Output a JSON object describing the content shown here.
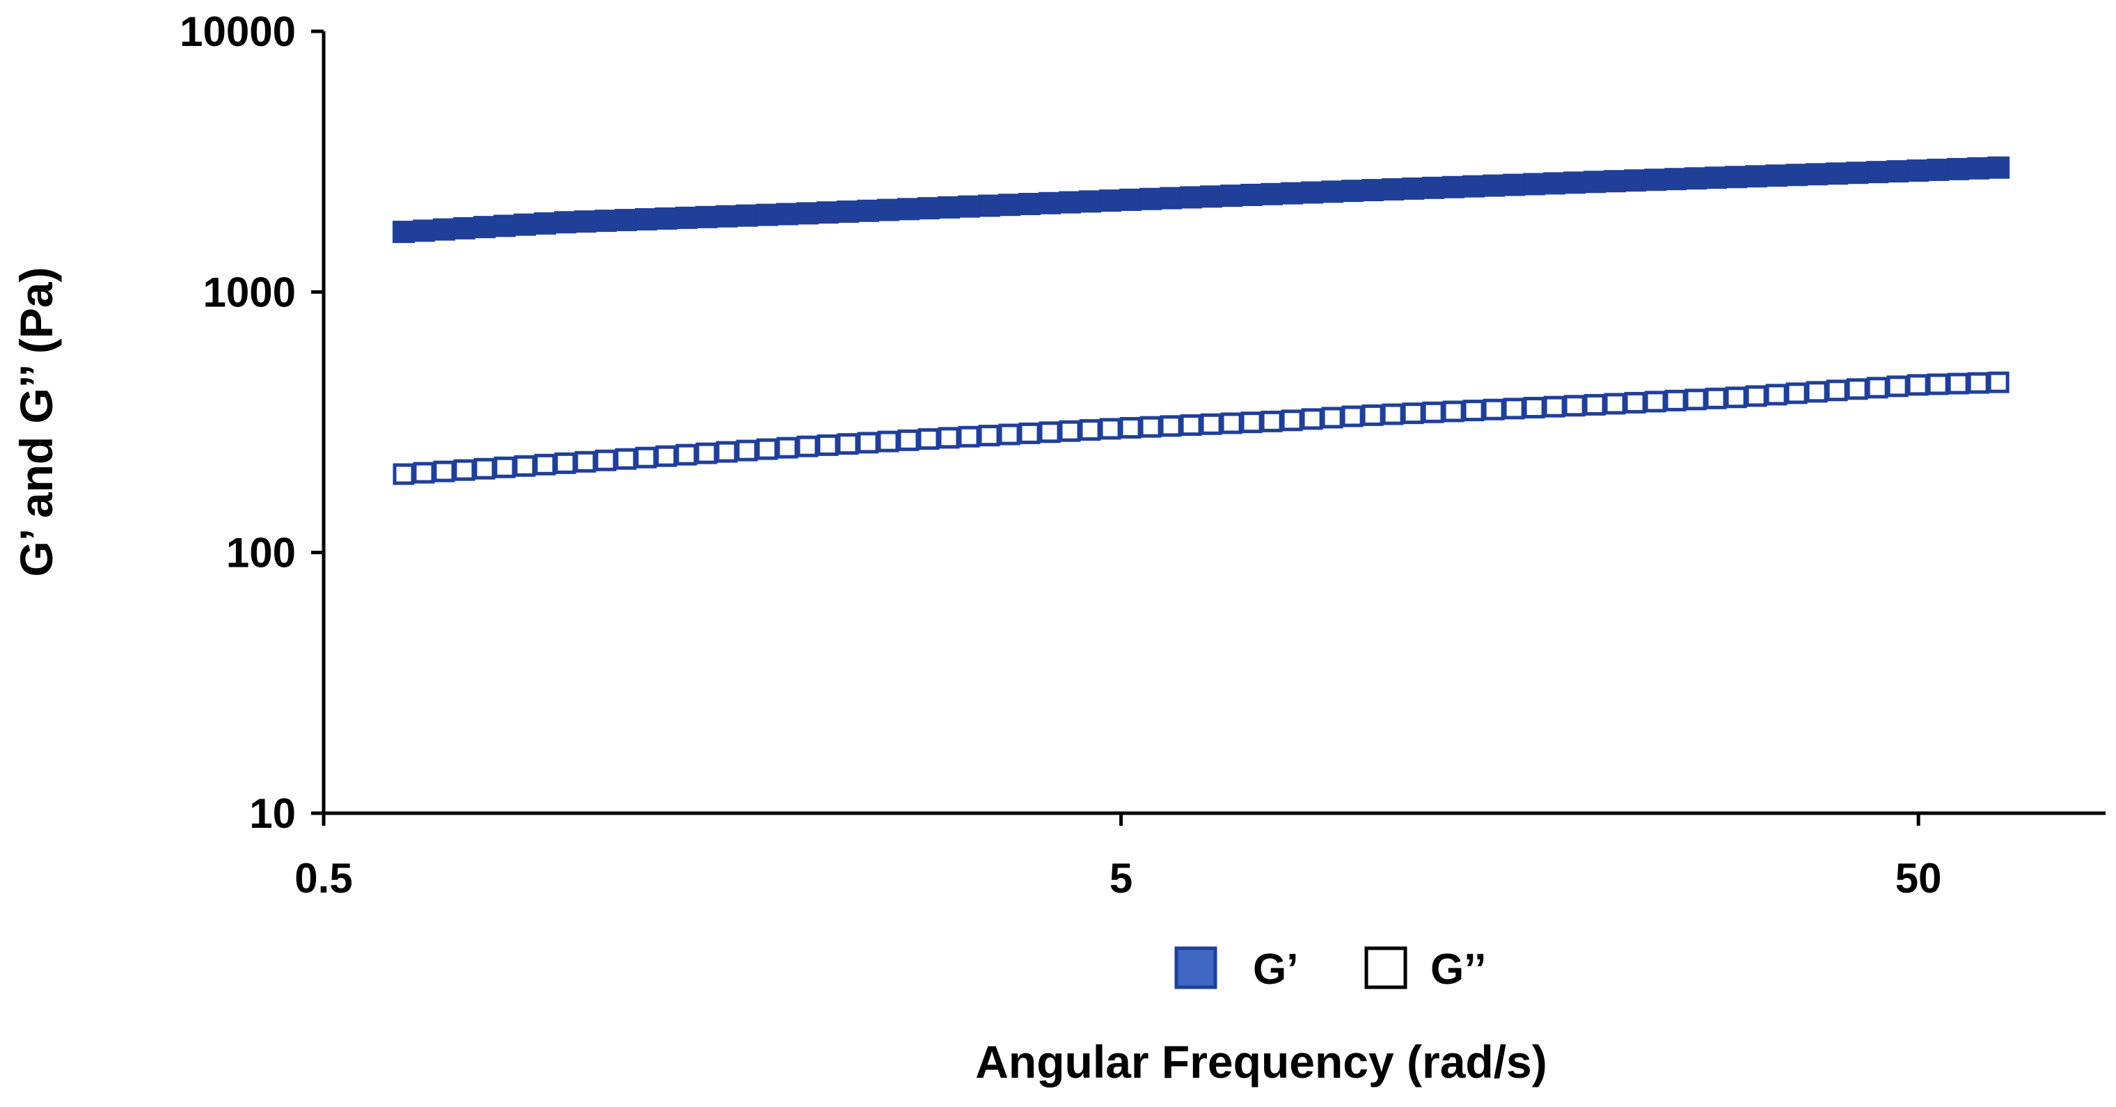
{
  "chart_data": {
    "type": "line",
    "xlabel": "Angular Frequency (rad/s)",
    "ylabel": "G’ and G’’ (Pa)",
    "xscale": "log",
    "yscale": "log",
    "xlim": [
      0.5,
      80
    ],
    "ylim": [
      10,
      10000
    ],
    "xticks": [
      0.5,
      5,
      50
    ],
    "xtick_labels": [
      "0.5",
      "5",
      "50"
    ],
    "yticks": [
      10,
      100,
      1000,
      10000
    ],
    "ytick_labels": [
      "10",
      "100",
      "1000",
      "10000"
    ],
    "grid": false,
    "legend_position": "bottom-center",
    "series": [
      {
        "name": "G’",
        "marker": "filled-square",
        "color": "#1f3f99",
        "x": [
          0.63,
          1,
          2,
          5,
          10,
          20,
          40,
          63
        ],
        "values": [
          1700,
          1850,
          2000,
          2250,
          2450,
          2650,
          2850,
          3000
        ]
      },
      {
        "name": "G’’",
        "marker": "open-square",
        "color": "#1f3f99",
        "x": [
          0.63,
          0.8,
          1,
          1.5,
          2,
          3,
          5,
          8,
          10,
          15,
          20,
          30,
          40,
          50,
          63
        ],
        "values": [
          200,
          210,
          220,
          240,
          255,
          275,
          300,
          320,
          335,
          355,
          370,
          395,
          420,
          440,
          450
        ]
      }
    ]
  }
}
